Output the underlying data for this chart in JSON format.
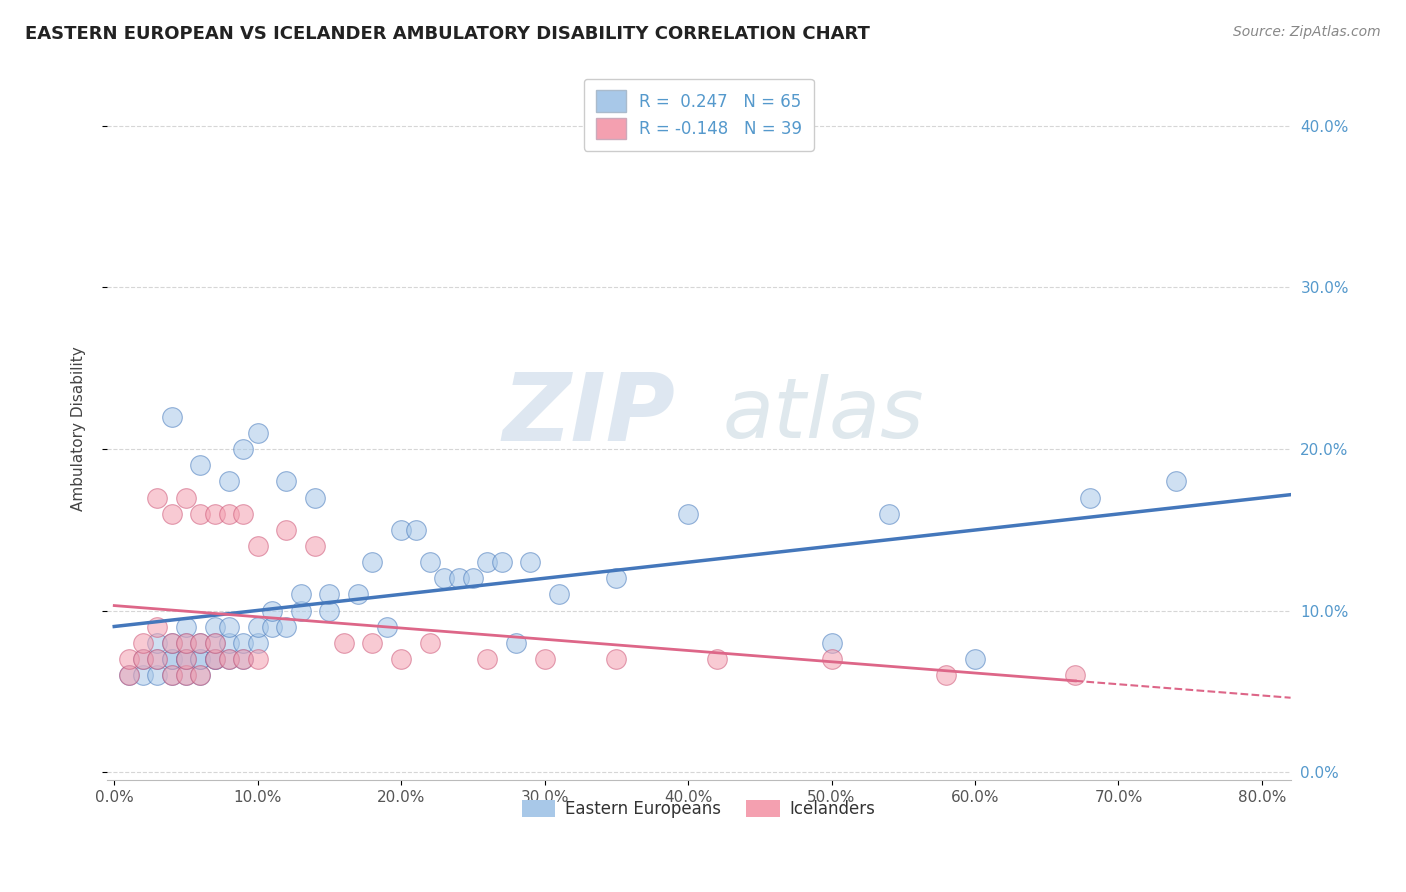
{
  "title": "EASTERN EUROPEAN VS ICELANDER AMBULATORY DISABILITY CORRELATION CHART",
  "source": "Source: ZipAtlas.com",
  "xlim": [
    -0.005,
    0.82
  ],
  "ylim": [
    -0.005,
    0.43
  ],
  "yticks": [
    0.0,
    0.1,
    0.2,
    0.3,
    0.4
  ],
  "xticks": [
    0.0,
    0.1,
    0.2,
    0.3,
    0.4,
    0.5,
    0.6,
    0.7,
    0.8
  ],
  "ylabel": "Ambulatory Disability",
  "r_eastern": 0.247,
  "n_eastern": 65,
  "r_icelander": -0.148,
  "n_icelander": 39,
  "color_eastern": "#a8c8e8",
  "color_icelander": "#f4a0b0",
  "color_line_eastern": "#4477bb",
  "color_line_icelander": "#dd6688",
  "color_right_axis": "#5599cc",
  "watermark_zip": "ZIP",
  "watermark_atlas": "atlas",
  "background_color": "#ffffff",
  "grid_color": "#cccccc",
  "eastern_x": [
    0.01,
    0.02,
    0.02,
    0.03,
    0.03,
    0.03,
    0.04,
    0.04,
    0.04,
    0.04,
    0.04,
    0.05,
    0.05,
    0.05,
    0.05,
    0.05,
    0.06,
    0.06,
    0.06,
    0.06,
    0.06,
    0.07,
    0.07,
    0.07,
    0.07,
    0.08,
    0.08,
    0.08,
    0.08,
    0.09,
    0.09,
    0.09,
    0.1,
    0.1,
    0.1,
    0.11,
    0.11,
    0.12,
    0.12,
    0.13,
    0.13,
    0.14,
    0.15,
    0.15,
    0.17,
    0.18,
    0.19,
    0.2,
    0.21,
    0.22,
    0.23,
    0.24,
    0.25,
    0.26,
    0.27,
    0.28,
    0.29,
    0.31,
    0.35,
    0.4,
    0.5,
    0.54,
    0.6,
    0.68,
    0.74
  ],
  "eastern_y": [
    0.06,
    0.06,
    0.07,
    0.06,
    0.07,
    0.08,
    0.06,
    0.07,
    0.07,
    0.08,
    0.22,
    0.06,
    0.07,
    0.07,
    0.08,
    0.09,
    0.06,
    0.07,
    0.07,
    0.08,
    0.19,
    0.07,
    0.07,
    0.08,
    0.09,
    0.07,
    0.08,
    0.09,
    0.18,
    0.07,
    0.08,
    0.2,
    0.08,
    0.09,
    0.21,
    0.09,
    0.1,
    0.09,
    0.18,
    0.1,
    0.11,
    0.17,
    0.1,
    0.11,
    0.11,
    0.13,
    0.09,
    0.15,
    0.15,
    0.13,
    0.12,
    0.12,
    0.12,
    0.13,
    0.13,
    0.08,
    0.13,
    0.11,
    0.12,
    0.16,
    0.08,
    0.16,
    0.07,
    0.17,
    0.18
  ],
  "icelander_x": [
    0.01,
    0.01,
    0.02,
    0.02,
    0.03,
    0.03,
    0.03,
    0.04,
    0.04,
    0.04,
    0.05,
    0.05,
    0.05,
    0.05,
    0.06,
    0.06,
    0.06,
    0.07,
    0.07,
    0.07,
    0.08,
    0.08,
    0.09,
    0.09,
    0.1,
    0.1,
    0.12,
    0.14,
    0.16,
    0.18,
    0.2,
    0.22,
    0.26,
    0.3,
    0.35,
    0.42,
    0.5,
    0.58,
    0.67
  ],
  "icelander_y": [
    0.06,
    0.07,
    0.07,
    0.08,
    0.07,
    0.09,
    0.17,
    0.06,
    0.08,
    0.16,
    0.06,
    0.07,
    0.08,
    0.17,
    0.06,
    0.08,
    0.16,
    0.07,
    0.08,
    0.16,
    0.07,
    0.16,
    0.07,
    0.16,
    0.07,
    0.14,
    0.15,
    0.14,
    0.08,
    0.08,
    0.07,
    0.08,
    0.07,
    0.07,
    0.07,
    0.07,
    0.07,
    0.06,
    0.06
  ]
}
